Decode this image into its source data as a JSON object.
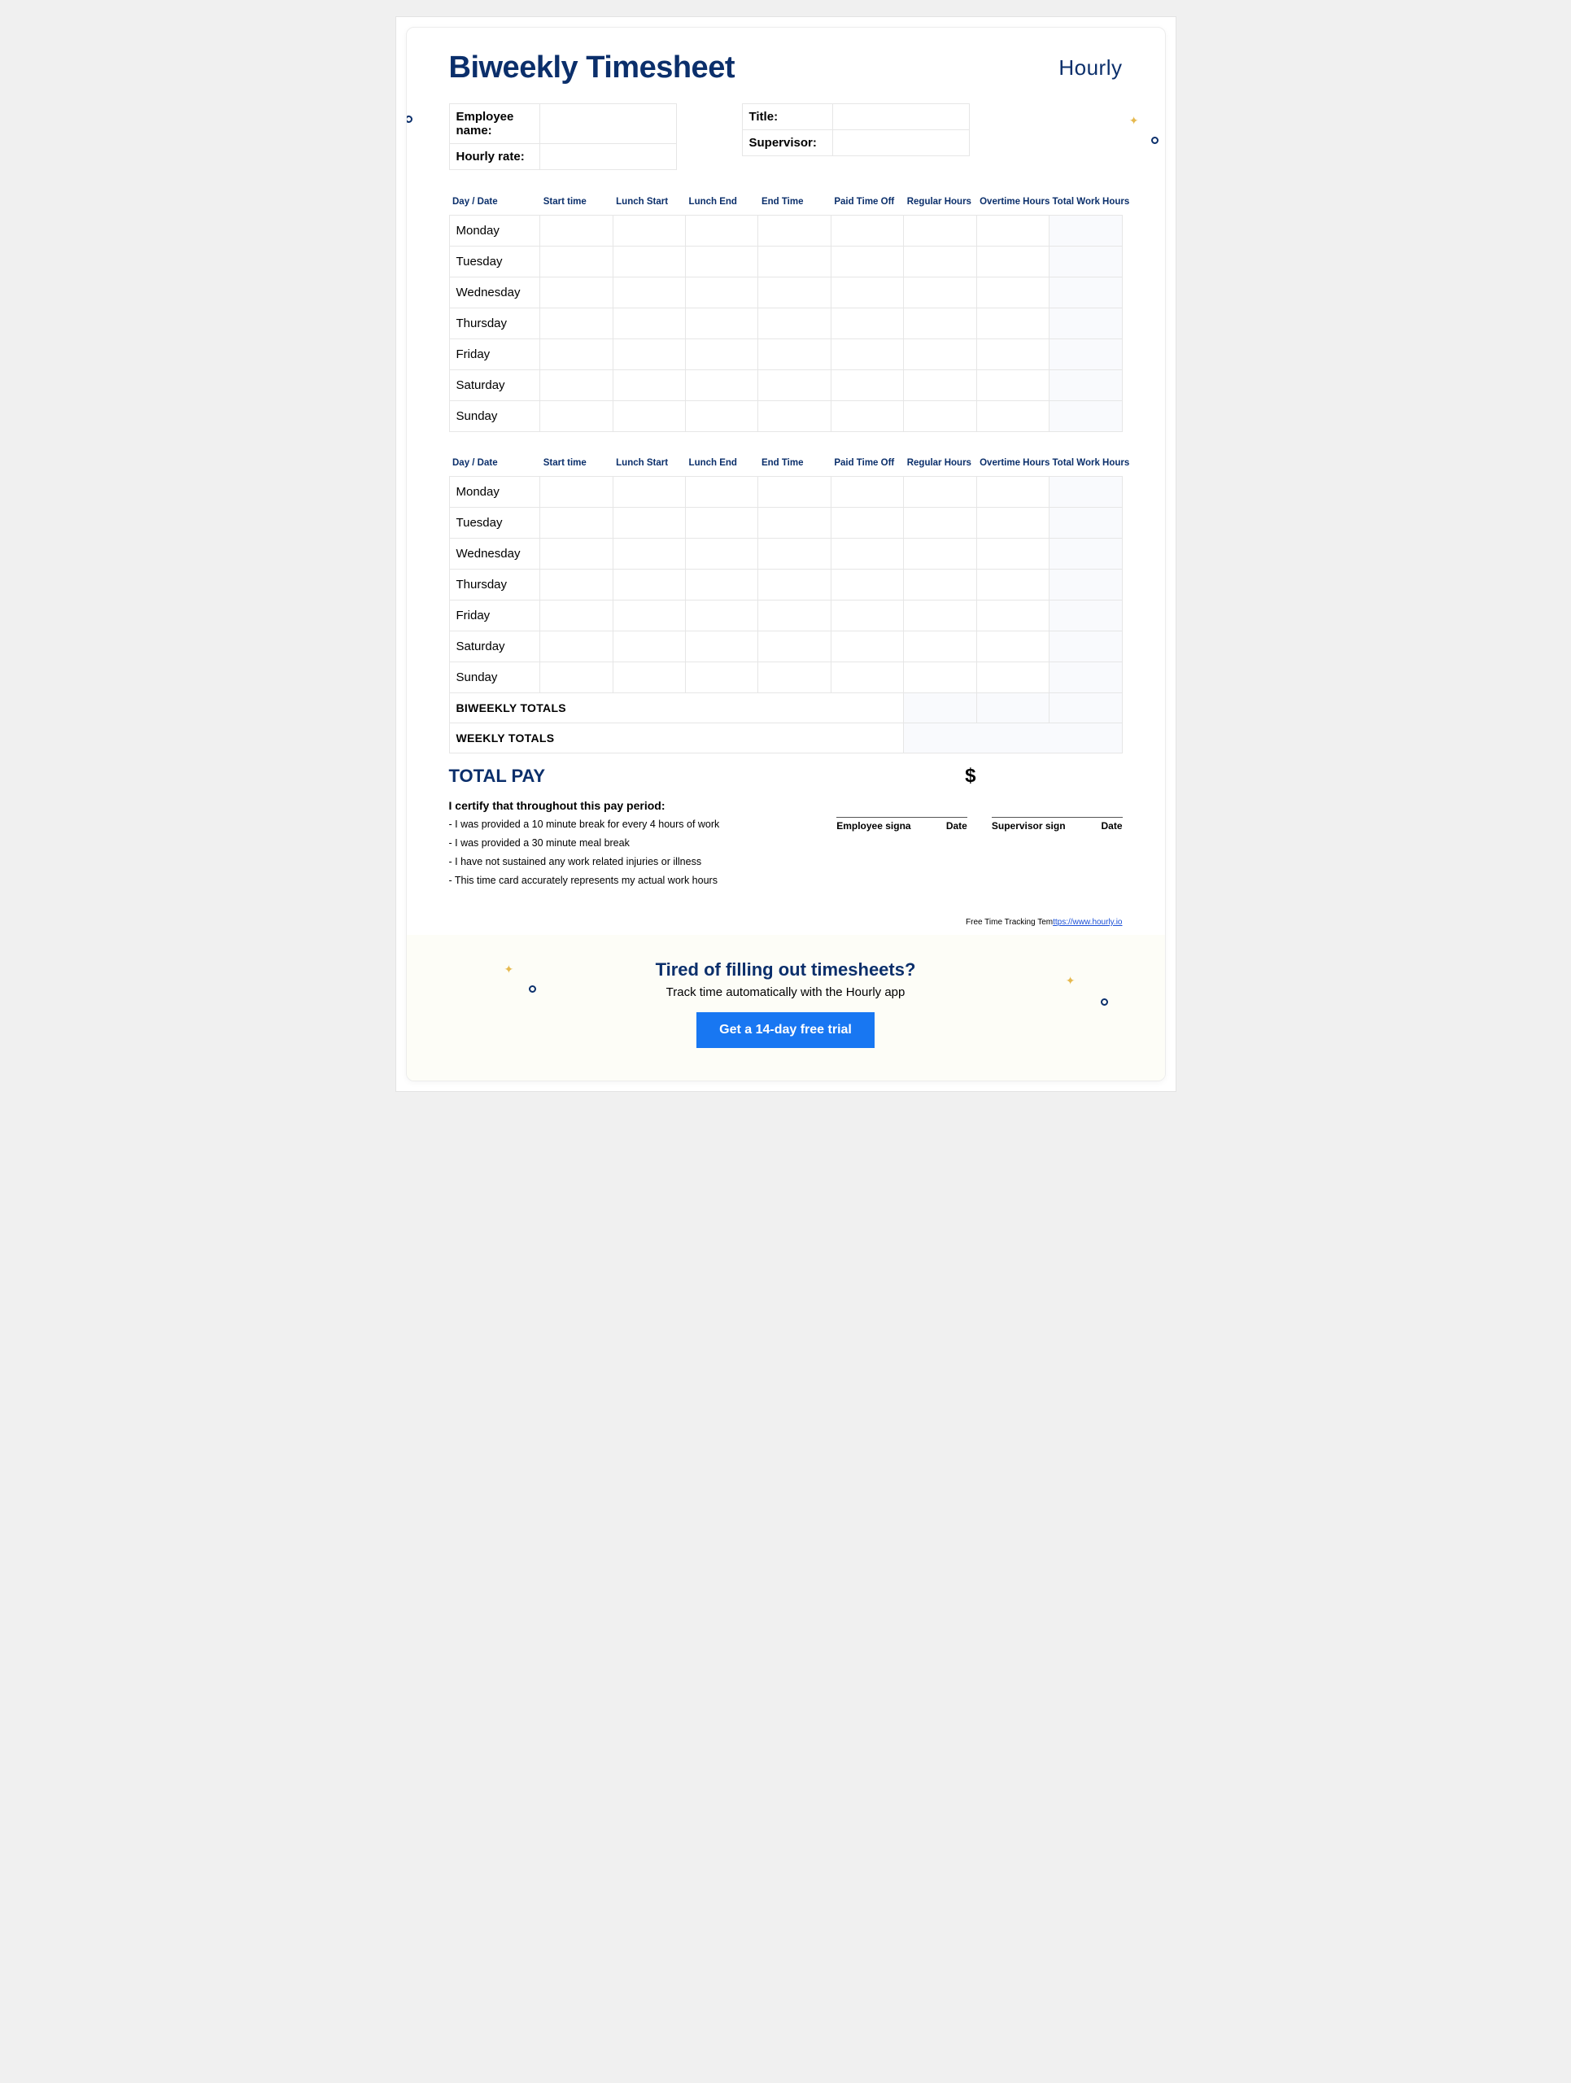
{
  "colors": {
    "brand_navy": "#0b2f6b",
    "accent_blue": "#1877f2",
    "sparkle": "#e6b94f",
    "page_bg": "#ffffff",
    "border": "#e6e6e6",
    "shade_bg": "#f9fafd",
    "cta_bg": "#fdfdf7"
  },
  "header": {
    "title": "Biweekly Timesheet",
    "brand": "Hourly"
  },
  "info": {
    "employee_name_label": "Employee name:",
    "hourly_rate_label": "Hourly rate:",
    "title_label": "Title:",
    "supervisor_label": "Supervisor:"
  },
  "table": {
    "headers": {
      "day_date": "Day / Date",
      "start_time": "Start time",
      "lunch_start": "Lunch Start",
      "lunch_end": "Lunch End",
      "end_time": "End Time",
      "pto": "Paid Time Off",
      "regular": "Regular Hours",
      "overtime": "Overtime Hours",
      "total": "Total Work Hours"
    },
    "days": [
      "Monday",
      "Tuesday",
      "Wednesday",
      "Thursday",
      "Friday",
      "Saturday",
      "Sunday"
    ],
    "biweekly_totals_label": "BIWEEKLY TOTALS",
    "weekly_totals_label": "WEEKLY TOTALS"
  },
  "total_pay": {
    "label": "TOTAL PAY",
    "currency": "$"
  },
  "cert": {
    "heading": "I certify that throughout this pay period:",
    "lines": [
      "- I was provided a 10 minute break for every 4 hours of work",
      "- I was provided a 30 minute meal break",
      "- I have not sustained any work related injuries or illness",
      "- This time card accurately represents my actual work hours"
    ],
    "emp_sig_label": "Employee signa",
    "sup_sig_label": "Supervisor sign",
    "date_label": "Date"
  },
  "footer": {
    "text": "Free Time Tracking Tem",
    "link_text": "ttps://www.hourly.io",
    "link_href": "https://www.hourly.io"
  },
  "cta": {
    "title": "Tired of filling out timesheets?",
    "sub": "Track time automatically with the Hourly app",
    "button": "Get a 14-day free trial"
  }
}
